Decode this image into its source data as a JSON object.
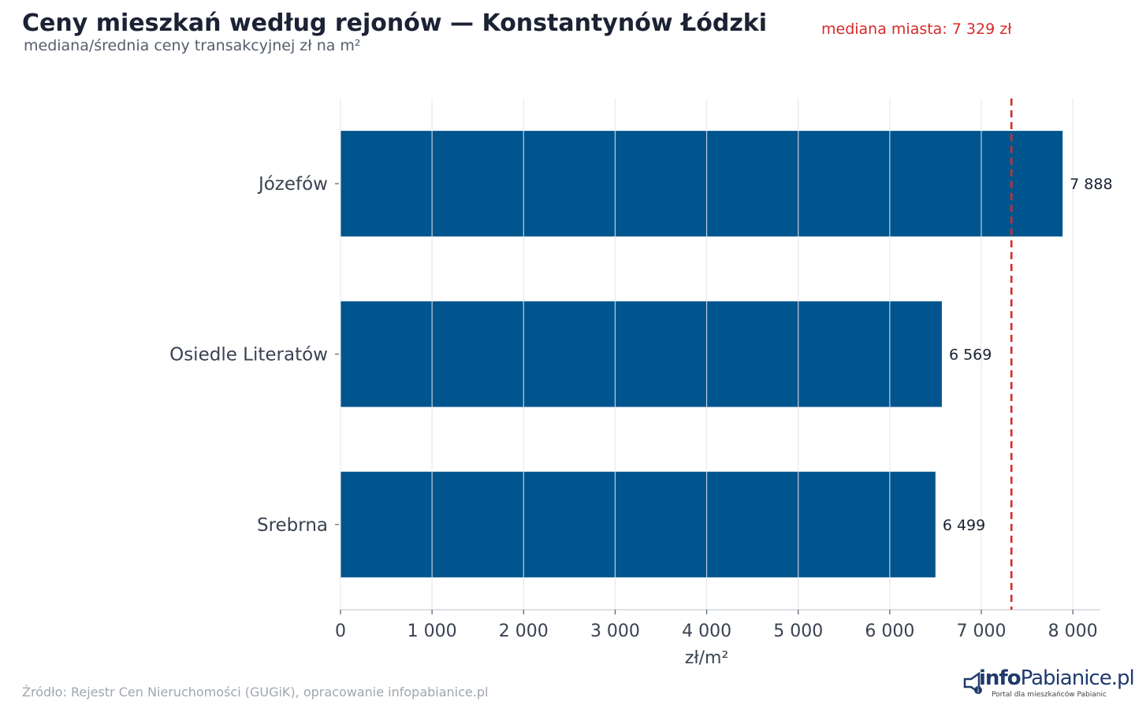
{
  "header": {
    "title": "Ceny mieszkań według rejonów — Konstantynów Łódzki",
    "subtitle": "mediana/średnia ceny transakcyjnej zł na m²"
  },
  "median": {
    "label": "mediana miasta: 7 329 zł",
    "value": 7329,
    "color": "#d62a2a"
  },
  "footer": {
    "source": "Źródło: Rejestr Cen Nieruchomości (GUGiK), opracowanie infopabianice.pl"
  },
  "logo": {
    "brand_part1": "info",
    "brand_part2": "Pabianice.pl",
    "tagline": "Portal dla mieszkańców Pabianic"
  },
  "chart_data": {
    "type": "bar",
    "orientation": "horizontal",
    "categories": [
      "Józefów",
      "Osiedle Literatów",
      "Srebrna"
    ],
    "values": [
      7888,
      6569,
      6499
    ],
    "value_labels": [
      "7 888",
      "6 569",
      "6 499"
    ],
    "xlabel": "zł/m²",
    "xlim": [
      0,
      8300
    ],
    "xticks": [
      0,
      1000,
      2000,
      3000,
      4000,
      5000,
      6000,
      7000,
      8000
    ],
    "xtick_labels": [
      "0",
      "1 000",
      "2 000",
      "3 000",
      "4 000",
      "5 000",
      "6 000",
      "7 000",
      "8 000"
    ],
    "grid": true,
    "bar_color": "#00558f",
    "reference_line": {
      "value": 7329,
      "style": "dashed",
      "color": "#d62a2a"
    }
  }
}
